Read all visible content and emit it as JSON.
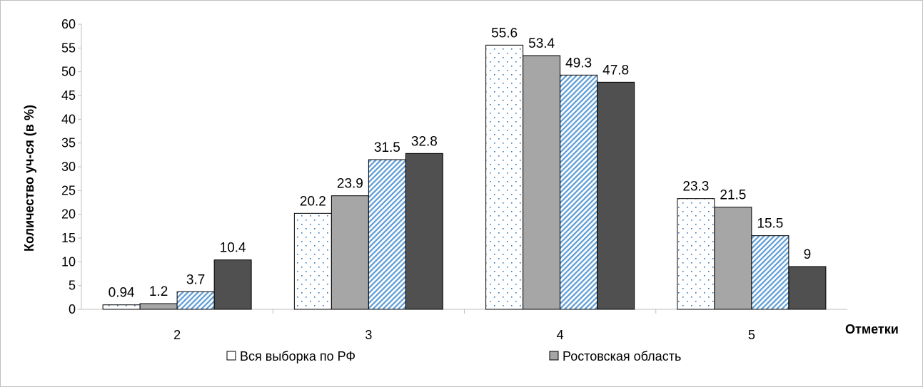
{
  "chart_data": {
    "type": "bar",
    "ylabel": "Количество уч-ся (в %)",
    "xlabel": "Отметки",
    "categories": [
      "2",
      "3",
      "4",
      "5"
    ],
    "ylim": [
      0,
      60
    ],
    "ytick_step": 5,
    "grid": false,
    "legend_position": "bottom",
    "series": [
      {
        "name": "Вся выборка по РФ",
        "values": [
          0.94,
          20.2,
          55.6,
          23.3
        ],
        "pattern": "dots",
        "color": "#ffffff"
      },
      {
        "name": "Ростовская область",
        "values": [
          1.2,
          23.9,
          53.4,
          21.5
        ],
        "pattern": "solid",
        "color": "#a6a6a6"
      },
      {
        "name": "",
        "values": [
          3.7,
          31.5,
          49.3,
          15.5
        ],
        "pattern": "diagonal",
        "color": "#9dc3e6"
      },
      {
        "name": "",
        "values": [
          10.4,
          32.8,
          47.8,
          9
        ],
        "pattern": "solid",
        "color": "#505050"
      }
    ]
  }
}
